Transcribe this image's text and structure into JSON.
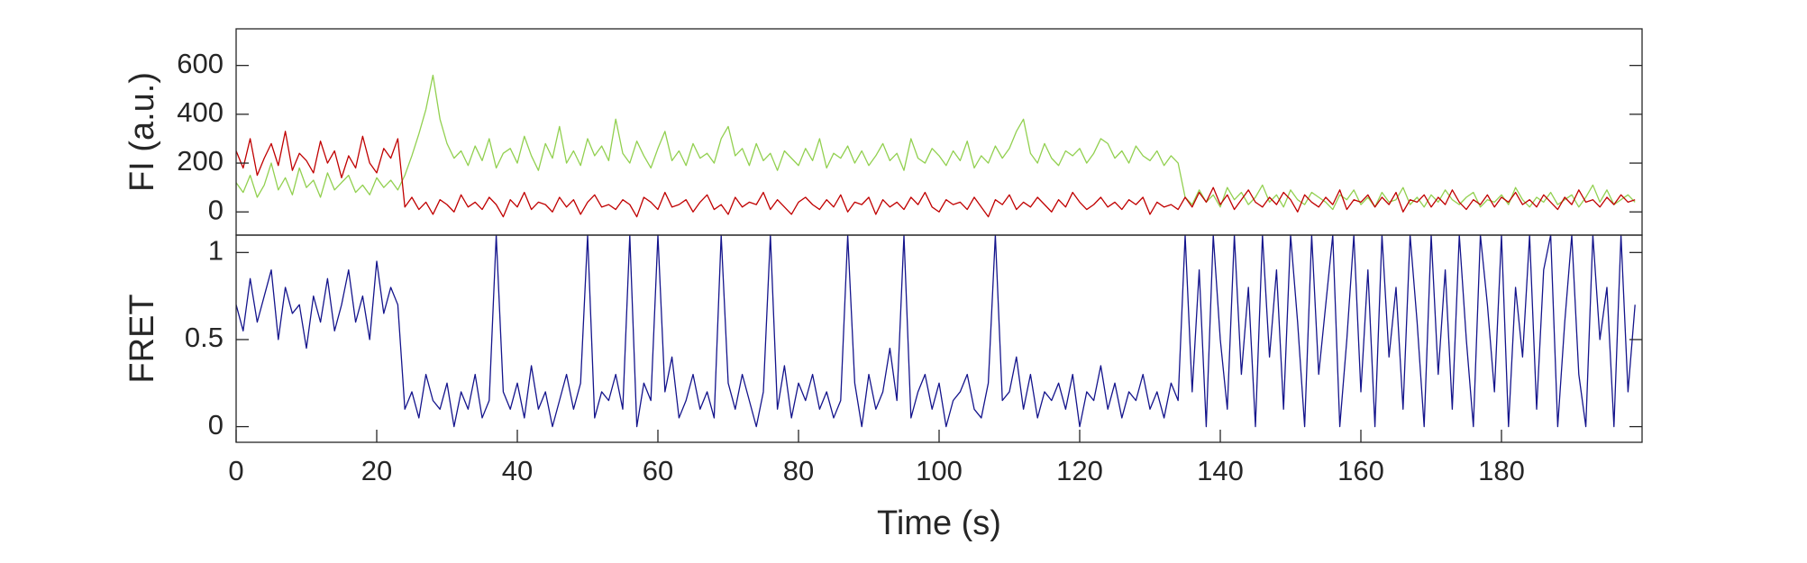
{
  "chart_data": [
    {
      "type": "line",
      "ylabel": "FI (a.u.)",
      "xlim": [
        0,
        200
      ],
      "ylim": [
        -95,
        750
      ],
      "yticks": [
        0,
        200,
        400,
        600
      ],
      "x": [
        0,
        1,
        2,
        3,
        4,
        5,
        6,
        7,
        8,
        9,
        10,
        11,
        12,
        13,
        14,
        15,
        16,
        17,
        18,
        19,
        20,
        21,
        22,
        23,
        24,
        25,
        26,
        27,
        28,
        29,
        30,
        31,
        32,
        33,
        34,
        35,
        36,
        37,
        38,
        39,
        40,
        41,
        42,
        43,
        44,
        45,
        46,
        47,
        48,
        49,
        50,
        51,
        52,
        53,
        54,
        55,
        56,
        57,
        58,
        59,
        60,
        61,
        62,
        63,
        64,
        65,
        66,
        67,
        68,
        69,
        70,
        71,
        72,
        73,
        74,
        75,
        76,
        77,
        78,
        79,
        80,
        81,
        82,
        83,
        84,
        85,
        86,
        87,
        88,
        89,
        90,
        91,
        92,
        93,
        94,
        95,
        96,
        97,
        98,
        99,
        100,
        101,
        102,
        103,
        104,
        105,
        106,
        107,
        108,
        109,
        110,
        111,
        112,
        113,
        114,
        115,
        116,
        117,
        118,
        119,
        120,
        121,
        122,
        123,
        124,
        125,
        126,
        127,
        128,
        129,
        130,
        131,
        132,
        133,
        134,
        135,
        136,
        137,
        138,
        139,
        140,
        141,
        142,
        143,
        144,
        145,
        146,
        147,
        148,
        149,
        150,
        151,
        152,
        153,
        154,
        155,
        156,
        157,
        158,
        159,
        160,
        161,
        162,
        163,
        164,
        165,
        166,
        167,
        168,
        169,
        170,
        171,
        172,
        173,
        174,
        175,
        176,
        177,
        178,
        179,
        180,
        181,
        182,
        183,
        184,
        185,
        186,
        187,
        188,
        189,
        190,
        191,
        192,
        193,
        194,
        195,
        196,
        197,
        198,
        199
      ],
      "series": [
        {
          "color": "#92d050",
          "values": [
            120,
            80,
            150,
            60,
            110,
            200,
            90,
            140,
            70,
            180,
            100,
            130,
            60,
            160,
            90,
            120,
            150,
            80,
            110,
            70,
            140,
            100,
            130,
            90,
            150,
            230,
            320,
            420,
            560,
            380,
            280,
            220,
            250,
            190,
            270,
            210,
            300,
            180,
            240,
            260,
            200,
            310,
            230,
            170,
            280,
            220,
            350,
            200,
            250,
            190,
            300,
            230,
            270,
            210,
            380,
            240,
            200,
            290,
            230,
            180,
            260,
            330,
            210,
            250,
            190,
            280,
            220,
            240,
            200,
            300,
            350,
            230,
            260,
            190,
            280,
            210,
            240,
            170,
            250,
            220,
            190,
            260,
            210,
            300,
            180,
            240,
            220,
            270,
            200,
            250,
            190,
            230,
            280,
            210,
            240,
            170,
            300,
            220,
            200,
            260,
            230,
            190,
            250,
            210,
            290,
            180,
            230,
            200,
            270,
            220,
            260,
            330,
            380,
            240,
            200,
            280,
            220,
            190,
            250,
            230,
            260,
            200,
            240,
            300,
            280,
            220,
            250,
            200,
            270,
            230,
            210,
            250,
            190,
            230,
            200,
            60,
            30,
            90,
            40,
            70,
            20,
            100,
            50,
            80,
            30,
            60,
            110,
            40,
            70,
            20,
            90,
            50,
            30,
            80,
            60,
            40,
            10,
            70,
            50,
            90,
            30,
            60,
            20,
            80,
            40,
            50,
            100,
            30,
            60,
            20,
            70,
            40,
            90,
            50,
            30,
            60,
            80,
            20,
            50,
            40,
            70,
            30,
            100,
            50,
            20,
            60,
            40,
            80,
            30,
            50,
            70,
            20,
            60,
            110,
            40,
            90,
            30,
            50,
            70,
            40
          ]
        },
        {
          "color": "#c00000",
          "values": [
            250,
            180,
            300,
            150,
            220,
            280,
            190,
            330,
            170,
            240,
            210,
            160,
            290,
            200,
            250,
            140,
            230,
            180,
            310,
            200,
            160,
            260,
            220,
            300,
            20,
            60,
            10,
            40,
            -10,
            50,
            30,
            0,
            70,
            20,
            40,
            10,
            60,
            30,
            -20,
            50,
            20,
            80,
            10,
            40,
            30,
            0,
            60,
            20,
            50,
            -10,
            40,
            70,
            20,
            30,
            10,
            50,
            30,
            -20,
            60,
            40,
            10,
            80,
            20,
            30,
            50,
            0,
            40,
            70,
            10,
            30,
            -10,
            60,
            20,
            40,
            30,
            80,
            10,
            50,
            20,
            -10,
            40,
            60,
            30,
            10,
            50,
            20,
            70,
            0,
            40,
            30,
            60,
            -10,
            50,
            20,
            40,
            10,
            60,
            30,
            80,
            20,
            0,
            50,
            30,
            40,
            10,
            60,
            20,
            -20,
            50,
            30,
            70,
            10,
            40,
            20,
            60,
            30,
            0,
            50,
            20,
            80,
            40,
            10,
            30,
            60,
            20,
            40,
            10,
            50,
            30,
            60,
            -10,
            40,
            20,
            30,
            10,
            60,
            20,
            80,
            40,
            100,
            30,
            70,
            10,
            50,
            90,
            40,
            20,
            60,
            30,
            80,
            50,
            0,
            70,
            40,
            20,
            60,
            30,
            90,
            10,
            50,
            40,
            70,
            20,
            60,
            30,
            80,
            0,
            50,
            40,
            70,
            20,
            60,
            30,
            90,
            40,
            10,
            50,
            30,
            70,
            20,
            60,
            40,
            80,
            30,
            50,
            20,
            70,
            40,
            10,
            60,
            30,
            90,
            40,
            50,
            20,
            60,
            30,
            70,
            40,
            50
          ]
        }
      ]
    },
    {
      "type": "line",
      "ylabel": "FRET",
      "xlabel": "Time (s)",
      "xlim": [
        0,
        200
      ],
      "ylim": [
        -0.09,
        1.1
      ],
      "yticks": [
        0,
        0.5,
        1
      ],
      "xticks": [
        0,
        20,
        40,
        60,
        80,
        100,
        120,
        140,
        160,
        180
      ],
      "x": [
        0,
        1,
        2,
        3,
        4,
        5,
        6,
        7,
        8,
        9,
        10,
        11,
        12,
        13,
        14,
        15,
        16,
        17,
        18,
        19,
        20,
        21,
        22,
        23,
        24,
        25,
        26,
        27,
        28,
        29,
        30,
        31,
        32,
        33,
        34,
        35,
        36,
        37,
        38,
        39,
        40,
        41,
        42,
        43,
        44,
        45,
        46,
        47,
        48,
        49,
        50,
        51,
        52,
        53,
        54,
        55,
        56,
        57,
        58,
        59,
        60,
        61,
        62,
        63,
        64,
        65,
        66,
        67,
        68,
        69,
        70,
        71,
        72,
        73,
        74,
        75,
        76,
        77,
        78,
        79,
        80,
        81,
        82,
        83,
        84,
        85,
        86,
        87,
        88,
        89,
        90,
        91,
        92,
        93,
        94,
        95,
        96,
        97,
        98,
        99,
        100,
        101,
        102,
        103,
        104,
        105,
        106,
        107,
        108,
        109,
        110,
        111,
        112,
        113,
        114,
        115,
        116,
        117,
        118,
        119,
        120,
        121,
        122,
        123,
        124,
        125,
        126,
        127,
        128,
        129,
        130,
        131,
        132,
        133,
        134,
        135,
        136,
        137,
        138,
        139,
        140,
        141,
        142,
        143,
        144,
        145,
        146,
        147,
        148,
        149,
        150,
        151,
        152,
        153,
        154,
        155,
        156,
        157,
        158,
        159,
        160,
        161,
        162,
        163,
        164,
        165,
        166,
        167,
        168,
        169,
        170,
        171,
        172,
        173,
        174,
        175,
        176,
        177,
        178,
        179,
        180,
        181,
        182,
        183,
        184,
        185,
        186,
        187,
        188,
        189,
        190,
        191,
        192,
        193,
        194,
        195,
        196,
        197,
        198,
        199
      ],
      "series": [
        {
          "color": "#14148c",
          "values": [
            0.7,
            0.55,
            0.85,
            0.6,
            0.75,
            0.9,
            0.5,
            0.8,
            0.65,
            0.7,
            0.45,
            0.75,
            0.6,
            0.85,
            0.55,
            0.7,
            0.9,
            0.6,
            0.75,
            0.5,
            0.95,
            0.65,
            0.8,
            0.7,
            0.1,
            0.2,
            0.05,
            0.3,
            0.15,
            0.1,
            0.25,
            0.0,
            0.2,
            0.1,
            0.3,
            0.05,
            0.15,
            1.1,
            0.2,
            0.1,
            0.25,
            0.05,
            0.35,
            0.1,
            0.2,
            0.0,
            0.15,
            0.3,
            0.1,
            0.25,
            1.1,
            0.05,
            0.2,
            0.15,
            0.3,
            0.1,
            1.1,
            0.0,
            0.25,
            0.15,
            1.1,
            0.2,
            0.4,
            0.05,
            0.15,
            0.3,
            0.1,
            0.2,
            0.05,
            1.1,
            0.25,
            0.1,
            0.3,
            0.15,
            0.0,
            0.2,
            1.1,
            0.1,
            0.35,
            0.05,
            0.25,
            0.15,
            0.3,
            0.1,
            0.2,
            0.05,
            0.15,
            1.1,
            0.25,
            0.0,
            0.3,
            0.1,
            0.2,
            0.45,
            0.15,
            1.1,
            0.05,
            0.2,
            0.3,
            0.1,
            0.25,
            0.0,
            0.15,
            0.2,
            0.3,
            0.1,
            0.05,
            0.25,
            1.1,
            0.15,
            0.2,
            0.4,
            0.1,
            0.3,
            0.05,
            0.2,
            0.15,
            0.25,
            0.1,
            0.3,
            0.0,
            0.2,
            0.15,
            0.35,
            0.1,
            0.25,
            0.05,
            0.2,
            0.15,
            0.3,
            0.1,
            0.2,
            0.05,
            0.25,
            0.15,
            1.1,
            0.2,
            0.9,
            0.0,
            1.1,
            0.5,
            0.1,
            1.1,
            0.3,
            0.8,
            0.0,
            1.1,
            0.4,
            0.9,
            0.1,
            1.1,
            0.6,
            0.0,
            1.1,
            0.3,
            0.7,
            1.1,
            0.0,
            0.5,
            1.1,
            0.2,
            0.9,
            0.0,
            1.1,
            0.4,
            0.8,
            0.1,
            1.1,
            0.6,
            0.0,
            1.1,
            0.3,
            0.9,
            0.1,
            1.1,
            0.5,
            0.0,
            1.1,
            0.7,
            0.2,
            1.1,
            0.0,
            0.8,
            0.4,
            1.1,
            0.1,
            0.9,
            1.1,
            0.0,
            0.6,
            1.1,
            0.3,
            0.0,
            1.1,
            0.5,
            0.8,
            0.0,
            1.1,
            0.2,
            0.7
          ]
        }
      ]
    }
  ]
}
